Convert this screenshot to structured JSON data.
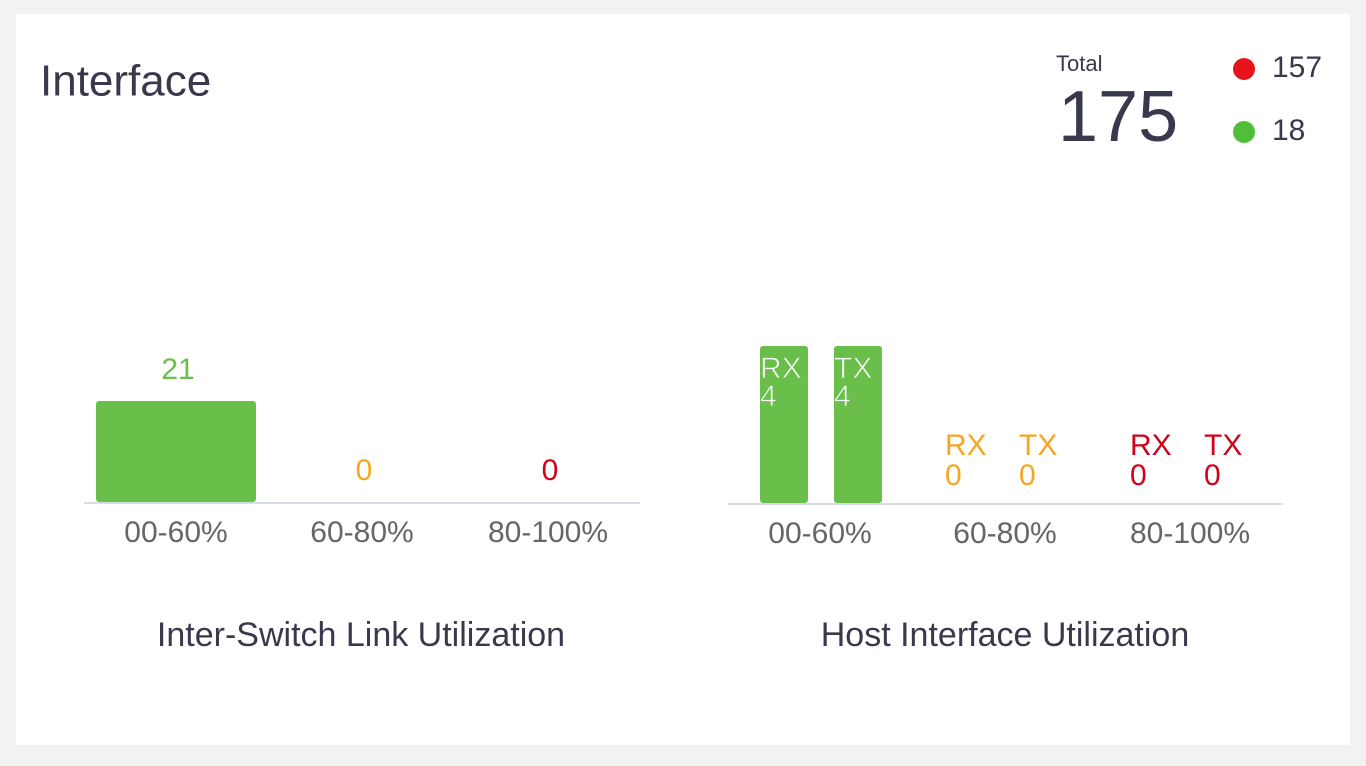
{
  "header": {
    "title": "Interface",
    "total_label": "Total",
    "total": 175,
    "statuses": [
      {
        "color": "#e8141c",
        "count": 157
      },
      {
        "color": "#4fbf3a",
        "count": 18
      }
    ]
  },
  "chart_data": [
    {
      "type": "bar",
      "title": "Inter-Switch Link Utilization",
      "categories": [
        "00-60%",
        "60-80%",
        "80-100%"
      ],
      "values": [
        21,
        0,
        0
      ],
      "colors": [
        "#6abf4b",
        "#f5a623",
        "#d0021b"
      ]
    },
    {
      "type": "grouped-bar",
      "title": "Host Interface Utilization",
      "categories": [
        "00-60%",
        "60-80%",
        "80-100%"
      ],
      "series": [
        {
          "name": "RX",
          "values": [
            4,
            0,
            0
          ]
        },
        {
          "name": "TX",
          "values": [
            4,
            0,
            0
          ]
        }
      ],
      "colors": [
        "#6abf4b",
        "#f5a623",
        "#d0021b"
      ]
    }
  ]
}
